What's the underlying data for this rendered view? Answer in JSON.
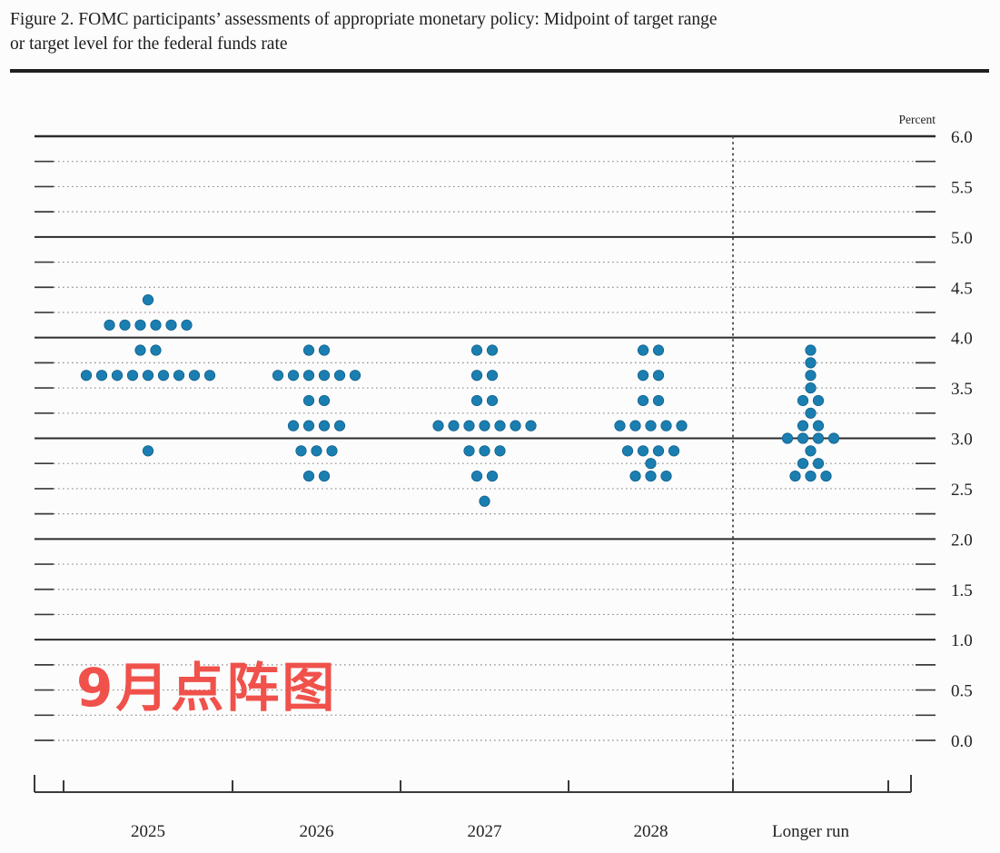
{
  "figure": {
    "title_line1": "Figure 2. FOMC participants’ assessments of appropriate monetary policy: Midpoint of target range",
    "title_line2": "or target level for the federal funds rate"
  },
  "annotation": {
    "text": "9月点阵图",
    "color": "#f0514b"
  },
  "chart_data": {
    "type": "scatter",
    "title": "FOMC dot plot: midpoint of target range or target level for the federal funds rate",
    "ylabel": "Percent",
    "xlabel": "",
    "ylim": [
      0.0,
      6.0
    ],
    "y_minor_step": 0.25,
    "y_label_step": 0.5,
    "y_tick_labels": [
      "6.0",
      "5.5",
      "5.0",
      "4.5",
      "4.0",
      "3.5",
      "3.0",
      "2.5",
      "2.0",
      "1.5",
      "1.0",
      "0.5",
      "0.0"
    ],
    "grid": "solid horizontal lines at whole percents (1.0–6.0), dotted lines at each quarter percent",
    "legend": "none",
    "dot_color": "#1b7eb0",
    "separator": {
      "between": [
        "2028",
        "Longer run"
      ],
      "style": "vertical dashed line"
    },
    "categories": [
      "2025",
      "2026",
      "2027",
      "2028",
      "Longer run"
    ],
    "series": [
      {
        "name": "2025",
        "dots": [
          {
            "rate": 4.375,
            "count": 1
          },
          {
            "rate": 4.125,
            "count": 6
          },
          {
            "rate": 3.875,
            "count": 2
          },
          {
            "rate": 3.625,
            "count": 9
          },
          {
            "rate": 2.875,
            "count": 1
          }
        ]
      },
      {
        "name": "2026",
        "dots": [
          {
            "rate": 3.875,
            "count": 2
          },
          {
            "rate": 3.625,
            "count": 6
          },
          {
            "rate": 3.375,
            "count": 2
          },
          {
            "rate": 3.125,
            "count": 4
          },
          {
            "rate": 2.875,
            "count": 3
          },
          {
            "rate": 2.625,
            "count": 2
          }
        ]
      },
      {
        "name": "2027",
        "dots": [
          {
            "rate": 3.875,
            "count": 2
          },
          {
            "rate": 3.625,
            "count": 2
          },
          {
            "rate": 3.375,
            "count": 2
          },
          {
            "rate": 3.125,
            "count": 7
          },
          {
            "rate": 2.875,
            "count": 3
          },
          {
            "rate": 2.625,
            "count": 2
          },
          {
            "rate": 2.375,
            "count": 1
          }
        ]
      },
      {
        "name": "2028",
        "dots": [
          {
            "rate": 3.875,
            "count": 2
          },
          {
            "rate": 3.625,
            "count": 2
          },
          {
            "rate": 3.375,
            "count": 2
          },
          {
            "rate": 3.125,
            "count": 5
          },
          {
            "rate": 2.875,
            "count": 4
          },
          {
            "rate": 2.75,
            "count": 1
          },
          {
            "rate": 2.625,
            "count": 3
          }
        ]
      },
      {
        "name": "Longer run",
        "dots": [
          {
            "rate": 3.875,
            "count": 1
          },
          {
            "rate": 3.75,
            "count": 1
          },
          {
            "rate": 3.625,
            "count": 1
          },
          {
            "rate": 3.5,
            "count": 1
          },
          {
            "rate": 3.375,
            "count": 2
          },
          {
            "rate": 3.25,
            "count": 1
          },
          {
            "rate": 3.125,
            "count": 2
          },
          {
            "rate": 3.0,
            "count": 4
          },
          {
            "rate": 2.875,
            "count": 1
          },
          {
            "rate": 2.75,
            "count": 2
          },
          {
            "rate": 2.625,
            "count": 3
          }
        ]
      }
    ]
  }
}
